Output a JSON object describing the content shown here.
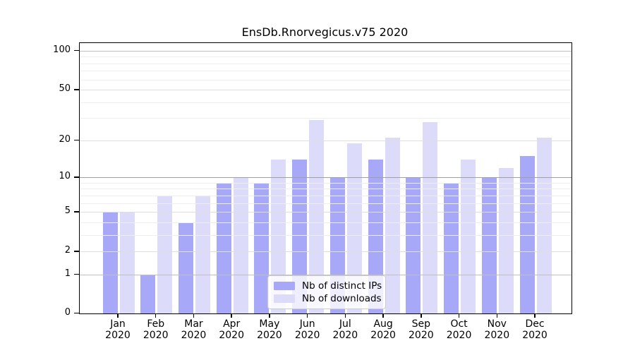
{
  "chart_data": {
    "type": "bar",
    "title": "EnsDb.Rnorvegicus.v75 2020",
    "categories": [
      "Jan 2020",
      "Feb 2020",
      "Mar 2020",
      "Apr 2020",
      "May 2020",
      "Jun 2020",
      "Jul 2020",
      "Aug 2020",
      "Sep 2020",
      "Oct 2020",
      "Nov 2020",
      "Dec 2020"
    ],
    "series": [
      {
        "name": "Nb of distinct IPs",
        "color": "#a8a8f8",
        "values": [
          5,
          1,
          4,
          9,
          9,
          14,
          10,
          14,
          10,
          9,
          10,
          15
        ]
      },
      {
        "name": "Nb of downloads",
        "color": "#dcdcfa",
        "values": [
          5,
          7,
          7,
          10,
          14,
          29,
          19,
          21,
          28,
          14,
          12,
          21
        ]
      }
    ],
    "xlabel": "",
    "ylabel": "",
    "yscale": "log1p",
    "ylim": [
      0,
      113
    ],
    "y_ticks": [
      0,
      1,
      2,
      5,
      10,
      20,
      50,
      100
    ],
    "y_tick_labels": [
      "0",
      "1",
      "2",
      "5",
      "10",
      "20",
      "50",
      "100"
    ],
    "grid": {
      "strong": [
        10
      ],
      "medium": [
        1,
        100
      ],
      "light": [
        2,
        5,
        20,
        50
      ],
      "faint": [
        3,
        4,
        6,
        7,
        8,
        9,
        30,
        40,
        60,
        70,
        80,
        90
      ]
    },
    "legend": {
      "position": "inside-bottom-center",
      "entries": [
        "Nb of distinct IPs",
        "Nb of downloads"
      ]
    }
  }
}
